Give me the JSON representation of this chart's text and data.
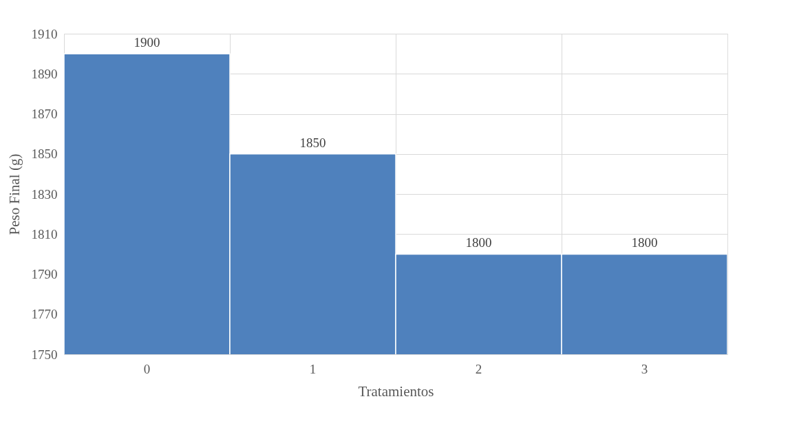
{
  "chart_data": {
    "type": "bar",
    "xlabel": "Tratamientos",
    "ylabel": "Peso Final (g)",
    "categories": [
      "0",
      "1",
      "2",
      "3"
    ],
    "values": [
      1900,
      1850,
      1800,
      1800
    ],
    "color": "#4f81bd",
    "ylim": [
      1750,
      1910
    ],
    "yticks": [
      1750,
      1770,
      1790,
      1810,
      1830,
      1850,
      1870,
      1890,
      1910
    ],
    "grid": true,
    "data_labels": true
  }
}
